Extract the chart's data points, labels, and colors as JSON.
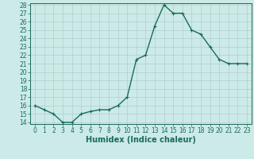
{
  "x": [
    0,
    1,
    2,
    3,
    4,
    5,
    6,
    7,
    8,
    9,
    10,
    11,
    12,
    13,
    14,
    15,
    16,
    17,
    18,
    19,
    20,
    21,
    22,
    23
  ],
  "y": [
    16,
    15.5,
    15,
    14,
    14,
    15,
    15.3,
    15.5,
    15.5,
    16,
    17,
    21.5,
    22,
    25.5,
    28,
    27,
    27,
    25,
    24.5,
    23,
    21.5,
    21,
    21,
    21
  ],
  "line_color": "#1a6b5a",
  "bg_color": "#cceae7",
  "grid_color": "#b0d0cc",
  "xlabel": "Humidex (Indice chaleur)",
  "ylim": [
    14,
    28
  ],
  "xlim": [
    -0.5,
    23.5
  ],
  "yticks": [
    14,
    15,
    16,
    17,
    18,
    19,
    20,
    21,
    22,
    23,
    24,
    25,
    26,
    27,
    28
  ],
  "xticks": [
    0,
    1,
    2,
    3,
    4,
    5,
    6,
    7,
    8,
    9,
    10,
    11,
    12,
    13,
    14,
    15,
    16,
    17,
    18,
    19,
    20,
    21,
    22,
    23
  ],
  "tick_label_fontsize": 5.5,
  "xlabel_fontsize": 7,
  "marker": "+",
  "marker_size": 3.5,
  "line_width": 1.0
}
